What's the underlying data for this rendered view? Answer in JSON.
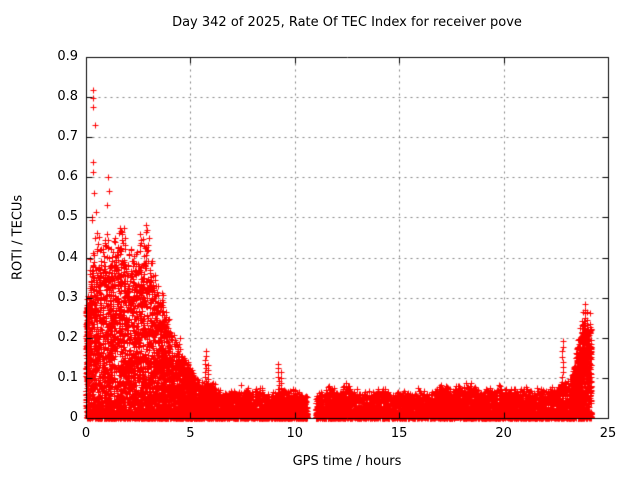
{
  "chart_data": {
    "type": "scatter",
    "title": "Day 342 of 2025, Rate Of TEC Index for receiver pove",
    "xlabel": "GPS time / hours",
    "ylabel": "ROTI / TECUs",
    "xlim": [
      0,
      25
    ],
    "ylim": [
      0,
      0.9
    ],
    "xticks": [
      0,
      5,
      10,
      15,
      20,
      25
    ],
    "xtick_labels": [
      "0",
      "5",
      "10",
      "15",
      "20",
      "25"
    ],
    "yticks": [
      0,
      0.1,
      0.2,
      0.3,
      0.4,
      0.5,
      0.6,
      0.7,
      0.8,
      0.9
    ],
    "ytick_labels": [
      "0",
      "0.1",
      "0.2",
      "0.3",
      "0.4",
      "0.5",
      "0.6",
      "0.7",
      "0.8",
      "0.9"
    ],
    "grid": "dashed",
    "legend": "none",
    "marker": {
      "shape": "plus",
      "color": "#ff0000",
      "size": 7
    },
    "colors": {
      "axis": "#000000",
      "grid": "#808080",
      "background": "#ffffff",
      "text": "#000000"
    },
    "data_gap_hours": [
      10.6,
      11.0
    ],
    "data_end_hour": 24.2,
    "generation": {
      "seed": 13422025,
      "top_jitter": [
        0.82,
        0.3
      ],
      "bands": [
        {
          "name": "storm-cluster",
          "x0": 0.05,
          "x1": 5.2,
          "n": 3500,
          "exp": 1.35,
          "envelope": [
            [
              0.05,
              0.3
            ],
            [
              0.3,
              0.4
            ],
            [
              0.6,
              0.43
            ],
            [
              1.0,
              0.42
            ],
            [
              1.3,
              0.4
            ],
            [
              1.6,
              0.46
            ],
            [
              1.9,
              0.42
            ],
            [
              2.2,
              0.4
            ],
            [
              2.5,
              0.42
            ],
            [
              2.9,
              0.46
            ],
            [
              3.1,
              0.38
            ],
            [
              3.4,
              0.34
            ],
            [
              3.7,
              0.28
            ],
            [
              4.0,
              0.22
            ],
            [
              4.3,
              0.18
            ],
            [
              4.7,
              0.14
            ],
            [
              5.2,
              0.11
            ]
          ]
        },
        {
          "name": "midday-tail",
          "x0": 5.2,
          "x1": 10.6,
          "n": 1800,
          "exp": 1.25,
          "envelope": [
            [
              5.2,
              0.1
            ],
            [
              5.6,
              0.08
            ],
            [
              6.0,
              0.09
            ],
            [
              6.5,
              0.06
            ],
            [
              7.0,
              0.065
            ],
            [
              7.5,
              0.075
            ],
            [
              8.0,
              0.06
            ],
            [
              8.3,
              0.075
            ],
            [
              8.7,
              0.055
            ],
            [
              9.0,
              0.06
            ],
            [
              9.5,
              0.07
            ],
            [
              10.0,
              0.065
            ],
            [
              10.6,
              0.055
            ]
          ]
        },
        {
          "name": "evening-strip",
          "x0": 11.0,
          "x1": 23.3,
          "n": 3500,
          "exp": 1.15,
          "envelope": [
            [
              11.0,
              0.055
            ],
            [
              11.7,
              0.075
            ],
            [
              12.0,
              0.065
            ],
            [
              12.5,
              0.085
            ],
            [
              12.8,
              0.07
            ],
            [
              13.2,
              0.06
            ],
            [
              13.6,
              0.065
            ],
            [
              14.2,
              0.07
            ],
            [
              14.8,
              0.06
            ],
            [
              15.4,
              0.065
            ],
            [
              16.0,
              0.07
            ],
            [
              16.6,
              0.06
            ],
            [
              17.0,
              0.085
            ],
            [
              17.5,
              0.065
            ],
            [
              18.0,
              0.08
            ],
            [
              18.3,
              0.09
            ],
            [
              18.8,
              0.065
            ],
            [
              19.3,
              0.07
            ],
            [
              19.7,
              0.085
            ],
            [
              20.1,
              0.07
            ],
            [
              20.6,
              0.065
            ],
            [
              21.0,
              0.075
            ],
            [
              21.5,
              0.065
            ],
            [
              21.9,
              0.08
            ],
            [
              22.3,
              0.07
            ],
            [
              22.8,
              0.08
            ],
            [
              23.3,
              0.1
            ]
          ]
        },
        {
          "name": "end-rise",
          "x0": 23.3,
          "x1": 24.2,
          "n": 800,
          "exp": 0.9,
          "envelope": [
            [
              23.3,
              0.1
            ],
            [
              23.5,
              0.16
            ],
            [
              23.7,
              0.22
            ],
            [
              23.85,
              0.27
            ],
            [
              24.0,
              0.26
            ],
            [
              24.2,
              0.22
            ]
          ]
        },
        {
          "name": "baseline-am",
          "x0": 0.05,
          "x1": 10.6,
          "n": 1200,
          "exp": 1.6,
          "envelope": [
            [
              0.05,
              0.015
            ],
            [
              10.6,
              0.015
            ]
          ]
        },
        {
          "name": "baseline-pm",
          "x0": 11.0,
          "x1": 24.2,
          "n": 1600,
          "exp": 1.6,
          "envelope": [
            [
              11.0,
              0.015
            ],
            [
              24.2,
              0.015
            ]
          ]
        },
        {
          "name": "hour-zero-column",
          "x0": 0.0,
          "x1": 0.1,
          "n": 120,
          "exp": 0.9,
          "envelope": [
            [
              0.0,
              0.3
            ],
            [
              0.1,
              0.28
            ]
          ]
        }
      ],
      "spikes": [
        {
          "x": 4.45,
          "base": 0.1,
          "top": 0.2,
          "n": 8
        },
        {
          "x": 5.72,
          "base": 0.06,
          "top": 0.165,
          "n": 11
        },
        {
          "x": 5.86,
          "base": 0.06,
          "top": 0.135,
          "n": 7
        },
        {
          "x": 9.22,
          "base": 0.05,
          "top": 0.135,
          "n": 9
        },
        {
          "x": 9.33,
          "base": 0.05,
          "top": 0.112,
          "n": 6
        },
        {
          "x": 22.82,
          "base": 0.09,
          "top": 0.19,
          "n": 9
        }
      ],
      "outliers": [
        [
          0.34,
          0.818
        ],
        [
          0.35,
          0.798
        ],
        [
          0.33,
          0.775
        ],
        [
          0.43,
          0.73
        ],
        [
          0.34,
          0.638
        ],
        [
          0.33,
          0.613
        ],
        [
          1.07,
          0.6
        ],
        [
          1.12,
          0.565
        ],
        [
          0.36,
          0.56
        ],
        [
          1.02,
          0.53
        ],
        [
          0.49,
          0.514
        ],
        [
          0.31,
          0.5
        ],
        [
          0.28,
          0.494
        ],
        [
          1.63,
          0.474
        ],
        [
          2.9,
          0.468
        ],
        [
          1.6,
          0.462
        ],
        [
          2.6,
          0.458
        ],
        [
          0.6,
          0.452
        ],
        [
          3.0,
          0.448
        ]
      ]
    }
  }
}
